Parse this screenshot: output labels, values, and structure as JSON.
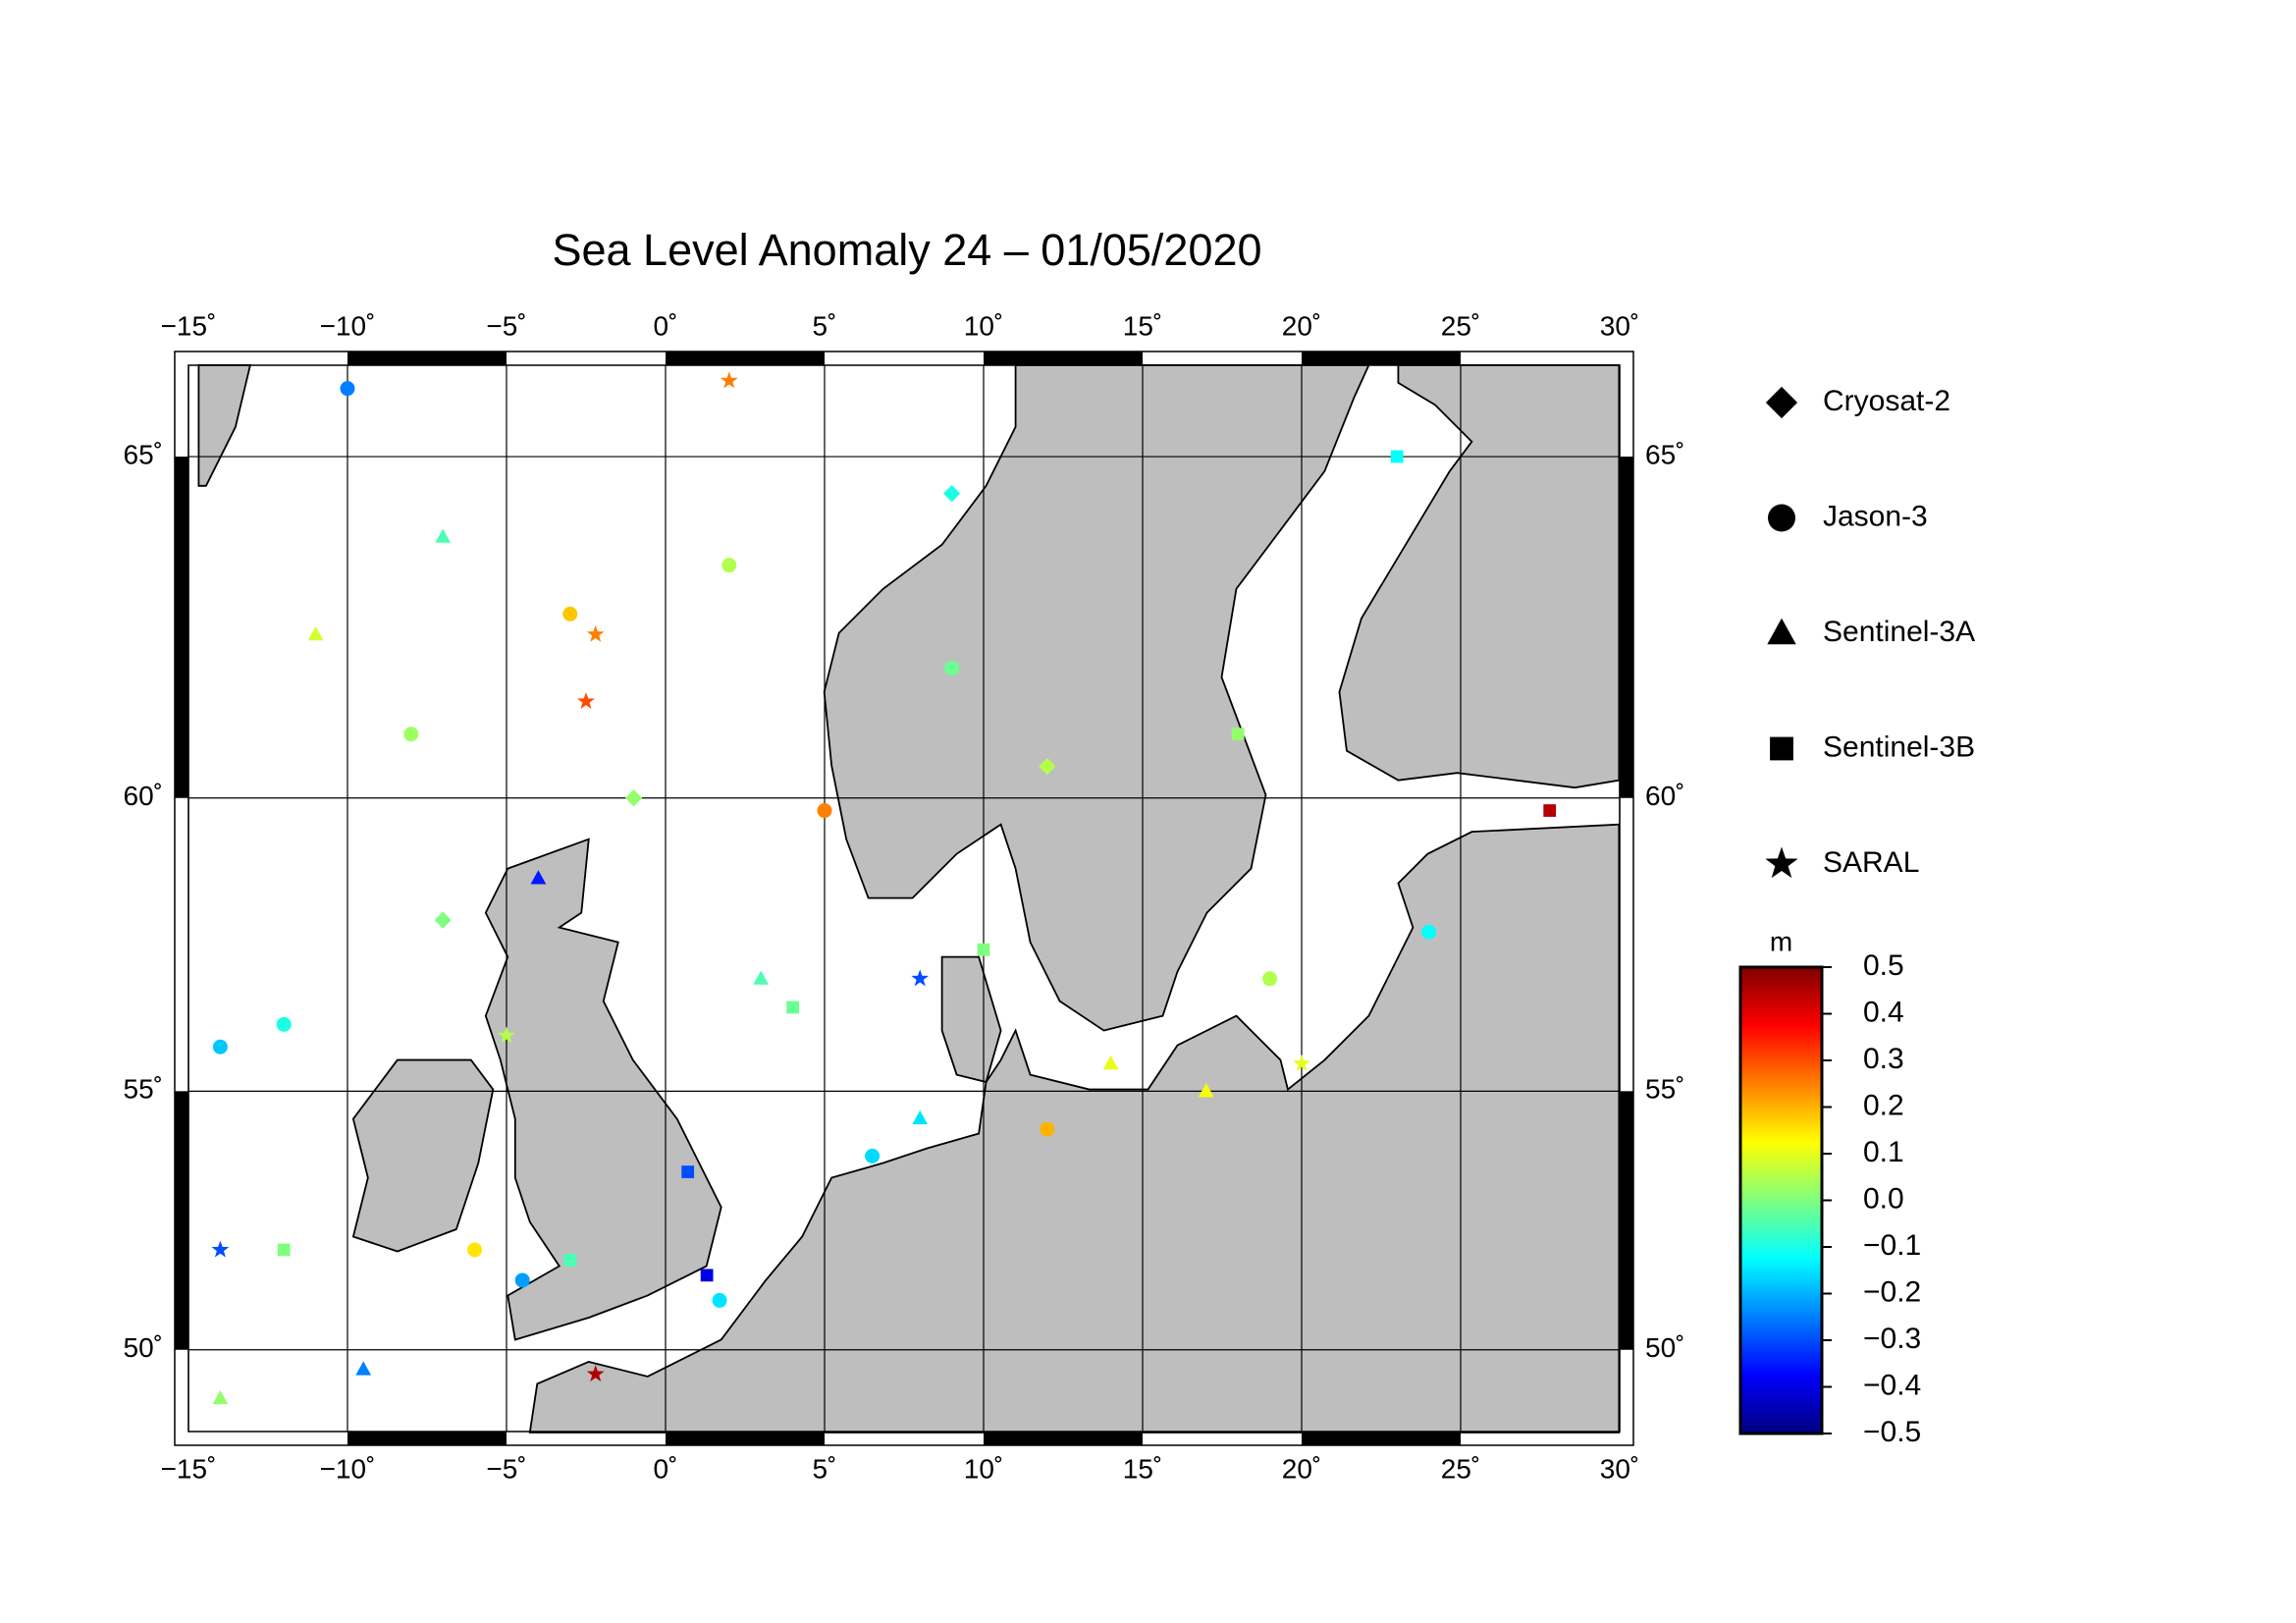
{
  "chart_data": {
    "type": "scatter-map",
    "title": "Sea Level Anomaly 24 – 01/05/2020",
    "xlim": [
      -15,
      30
    ],
    "ylim": [
      48.3,
      66.2
    ],
    "xticks": [
      {
        "value": -15,
        "label": "−15˚"
      },
      {
        "value": -10,
        "label": "−10˚"
      },
      {
        "value": -5,
        "label": "−5˚"
      },
      {
        "value": 0,
        "label": "0˚"
      },
      {
        "value": 5,
        "label": "5˚"
      },
      {
        "value": 10,
        "label": "10˚"
      },
      {
        "value": 15,
        "label": "15˚"
      },
      {
        "value": 20,
        "label": "20˚"
      },
      {
        "value": 25,
        "label": "25˚"
      },
      {
        "value": 30,
        "label": "30˚"
      }
    ],
    "yticks": [
      {
        "value": 50,
        "label": "50˚"
      },
      {
        "value": 55,
        "label": "55˚"
      },
      {
        "value": 60,
        "label": "60˚"
      },
      {
        "value": 65,
        "label": "65˚"
      }
    ],
    "grid": true,
    "colorbar": {
      "label": "m",
      "lim": [
        -0.5,
        0.5
      ],
      "ticks": [
        0.5,
        0.4,
        0.3,
        0.2,
        0.1,
        {
          "value": 0,
          "label": "0.0"
        },
        {
          "value": -0.1,
          "label": "−0.1"
        },
        {
          "value": -0.2,
          "label": "−0.2"
        },
        {
          "value": -0.3,
          "label": "−0.3"
        },
        {
          "value": -0.4,
          "label": "−0.4"
        },
        {
          "value": -0.5,
          "label": "−0.5"
        }
      ],
      "colormap": [
        "#00007f",
        "#0000ff",
        "#007fff",
        "#00ffff",
        "#7fff7f",
        "#ffff00",
        "#ff7f00",
        "#ff0000",
        "#7f0000"
      ]
    },
    "series": [
      {
        "name": "Cryosat-2",
        "marker": "diamond",
        "x": [
          9,
          -7,
          12,
          -1
        ],
        "y": [
          64.5,
          58,
          60.5,
          60
        ],
        "values": [
          -0.1,
          0.0,
          0.05,
          0.02
        ]
      },
      {
        "name": "Jason-3",
        "marker": "circle",
        "x": [
          -10,
          -14,
          -3,
          6.5,
          12,
          -4.5,
          1.7,
          2,
          -8,
          19,
          24,
          -12,
          5,
          -6,
          9
        ],
        "y": [
          65.9,
          55.8,
          62.8,
          53.8,
          54.3,
          51.4,
          51,
          63.5,
          61,
          57,
          57.8,
          56.2,
          59.8,
          52,
          62
        ],
        "values": [
          -0.25,
          -0.18,
          0.18,
          -0.16,
          0.2,
          -0.22,
          -0.15,
          0.05,
          0.03,
          0.05,
          -0.12,
          -0.1,
          0.25,
          0.15,
          -0.02
        ]
      },
      {
        "name": "Sentinel-3A",
        "marker": "triangle",
        "x": [
          -4,
          8,
          -14,
          -7,
          14,
          -11,
          3,
          17,
          -9.5
        ],
        "y": [
          58.7,
          54.5,
          49,
          63.9,
          55.5,
          62.5,
          57,
          55,
          49.6
        ],
        "values": [
          -0.35,
          -0.15,
          0.02,
          -0.05,
          0.1,
          0.08,
          -0.05,
          0.12,
          -0.25
        ]
      },
      {
        "name": "Sentinel-3B",
        "marker": "square",
        "x": [
          0.7,
          1.3,
          27.8,
          23,
          18,
          -3,
          4,
          -12,
          10
        ],
        "y": [
          53.5,
          51.5,
          59.8,
          65,
          61,
          51.8,
          56.5,
          52,
          57.5
        ],
        "values": [
          -0.3,
          -0.4,
          0.45,
          -0.12,
          0.02,
          -0.05,
          -0.02,
          0.0,
          0.0
        ]
      },
      {
        "name": "SARAL",
        "marker": "star",
        "x": [
          -2.2,
          -2.2,
          -2.5,
          -14,
          8,
          2,
          -5,
          20
        ],
        "y": [
          49.5,
          62.5,
          61.5,
          52,
          57,
          66,
          56,
          55.5
        ],
        "values": [
          0.45,
          0.25,
          0.3,
          -0.3,
          -0.3,
          0.25,
          0.05,
          0.1
        ]
      }
    ]
  }
}
